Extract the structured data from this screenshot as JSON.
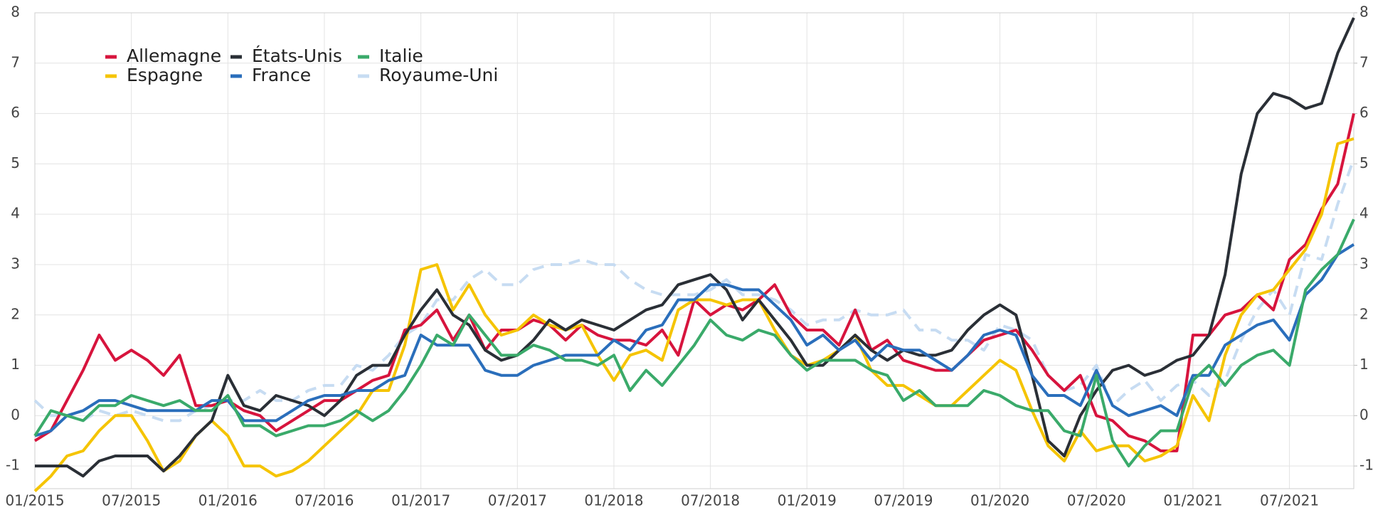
{
  "chart_data": {
    "type": "line",
    "categories": [
      "01/2015",
      null,
      null,
      null,
      null,
      null,
      "07/2015",
      null,
      null,
      null,
      null,
      null,
      "01/2016",
      null,
      null,
      null,
      null,
      null,
      "07/2016",
      null,
      null,
      null,
      null,
      null,
      "01/2017",
      null,
      null,
      null,
      null,
      null,
      "07/2017",
      null,
      null,
      null,
      null,
      null,
      "01/2018",
      null,
      null,
      null,
      null,
      null,
      "07/2018",
      null,
      null,
      null,
      null,
      null,
      "01/2019",
      null,
      null,
      null,
      null,
      null,
      "07/2019",
      null,
      null,
      null,
      null,
      null,
      "01/2020",
      null,
      null,
      null,
      null,
      null,
      "07/2020",
      null,
      null,
      null,
      null,
      null,
      "01/2021",
      null,
      null,
      null,
      null,
      null,
      "07/2021",
      null,
      null,
      null,
      null
    ],
    "series": [
      {
        "name": "Allemagne",
        "color": "#d7143d",
        "values": [
          -0.5,
          -0.3,
          0.3,
          0.9,
          1.6,
          1.1,
          1.3,
          1.1,
          0.8,
          1.2,
          0.2,
          0.2,
          0.3,
          0.1,
          0.0,
          -0.3,
          -0.1,
          0.1,
          0.3,
          0.3,
          0.5,
          0.7,
          0.8,
          1.7,
          1.8,
          2.1,
          1.5,
          2.0,
          1.3,
          1.7,
          1.7,
          1.9,
          1.8,
          1.5,
          1.8,
          1.6,
          1.5,
          1.5,
          1.4,
          1.7,
          1.2,
          2.3,
          2.0,
          2.2,
          2.1,
          2.3,
          2.6,
          2.0,
          1.7,
          1.7,
          1.4,
          2.1,
          1.3,
          1.5,
          1.1,
          1.0,
          0.9,
          0.9,
          1.2,
          1.5,
          1.6,
          1.7,
          1.3,
          0.8,
          0.5,
          0.8,
          0.0,
          -0.1,
          -0.4,
          -0.5,
          -0.7,
          -0.7,
          1.6,
          1.6,
          2.0,
          2.1,
          2.4,
          2.1,
          3.1,
          3.4,
          4.1,
          4.6,
          6.0
        ]
      },
      {
        "name": "Espagne",
        "color": "#f5c400",
        "values": [
          -1.5,
          -1.2,
          -0.8,
          -0.7,
          -0.3,
          -0.0,
          -0.0,
          -0.5,
          -1.1,
          -0.9,
          -0.4,
          -0.1,
          -0.4,
          -1.0,
          -1.0,
          -1.2,
          -1.1,
          -0.9,
          -0.6,
          -0.3,
          0.0,
          0.5,
          0.5,
          1.4,
          2.9,
          3.0,
          2.1,
          2.6,
          2.0,
          1.6,
          1.7,
          2.0,
          1.8,
          1.7,
          1.8,
          1.2,
          0.7,
          1.2,
          1.3,
          1.1,
          2.1,
          2.3,
          2.3,
          2.2,
          2.3,
          2.3,
          1.7,
          1.2,
          1.0,
          1.1,
          1.3,
          1.6,
          0.9,
          0.6,
          0.6,
          0.4,
          0.2,
          0.2,
          0.5,
          0.8,
          1.1,
          0.9,
          0.1,
          -0.6,
          -0.9,
          -0.3,
          -0.7,
          -0.6,
          -0.6,
          -0.9,
          -0.8,
          -0.6,
          0.4,
          -0.1,
          1.2,
          2.0,
          2.4,
          2.5,
          2.9,
          3.3,
          4.0,
          5.4,
          5.5
        ]
      },
      {
        "name": "États-Unis",
        "color": "#2a2f36",
        "values": [
          -1.0,
          -1.0,
          -1.0,
          -1.2,
          -0.9,
          -0.8,
          -0.8,
          -0.8,
          -1.1,
          -0.8,
          -0.4,
          -0.1,
          0.8,
          0.2,
          0.1,
          0.4,
          0.3,
          0.2,
          0.0,
          0.3,
          0.8,
          1.0,
          1.0,
          1.6,
          2.1,
          2.5,
          2.0,
          1.8,
          1.3,
          1.1,
          1.2,
          1.5,
          1.9,
          1.7,
          1.9,
          1.8,
          1.7,
          1.9,
          2.1,
          2.2,
          2.6,
          2.7,
          2.8,
          2.5,
          1.9,
          2.3,
          1.9,
          1.5,
          1.0,
          1.0,
          1.3,
          1.6,
          1.3,
          1.1,
          1.3,
          1.2,
          1.2,
          1.3,
          1.7,
          2.0,
          2.2,
          2.0,
          0.8,
          -0.5,
          -0.8,
          0.0,
          0.5,
          0.9,
          1.0,
          0.8,
          0.9,
          1.1,
          1.2,
          1.6,
          2.8,
          4.8,
          6.0,
          6.4,
          6.3,
          6.1,
          6.2,
          7.2,
          7.9
        ]
      },
      {
        "name": "France",
        "color": "#2a6ebb",
        "values": [
          -0.4,
          -0.3,
          0.0,
          0.1,
          0.3,
          0.3,
          0.2,
          0.1,
          0.1,
          0.1,
          0.1,
          0.3,
          0.3,
          -0.1,
          -0.1,
          -0.1,
          0.1,
          0.3,
          0.4,
          0.4,
          0.5,
          0.5,
          0.7,
          0.8,
          1.6,
          1.4,
          1.4,
          1.4,
          0.9,
          0.8,
          0.8,
          1.0,
          1.1,
          1.2,
          1.2,
          1.2,
          1.5,
          1.3,
          1.7,
          1.8,
          2.3,
          2.3,
          2.6,
          2.6,
          2.5,
          2.5,
          2.2,
          1.9,
          1.4,
          1.6,
          1.3,
          1.5,
          1.1,
          1.4,
          1.3,
          1.3,
          1.1,
          0.9,
          1.2,
          1.6,
          1.7,
          1.6,
          0.8,
          0.4,
          0.4,
          0.2,
          0.9,
          0.2,
          0.0,
          0.1,
          0.2,
          0.0,
          0.8,
          0.8,
          1.4,
          1.6,
          1.8,
          1.9,
          1.5,
          2.4,
          2.7,
          3.2,
          3.4
        ]
      },
      {
        "name": "Italie",
        "color": "#3aaa6a",
        "values": [
          -0.4,
          0.1,
          0.0,
          -0.1,
          0.2,
          0.2,
          0.4,
          0.3,
          0.2,
          0.3,
          0.1,
          0.1,
          0.4,
          -0.2,
          -0.2,
          -0.4,
          -0.3,
          -0.2,
          -0.2,
          -0.1,
          0.1,
          -0.1,
          0.1,
          0.5,
          1.0,
          1.6,
          1.4,
          2.0,
          1.6,
          1.2,
          1.2,
          1.4,
          1.3,
          1.1,
          1.1,
          1.0,
          1.2,
          0.5,
          0.9,
          0.6,
          1.0,
          1.4,
          1.9,
          1.6,
          1.5,
          1.7,
          1.6,
          1.2,
          0.9,
          1.1,
          1.1,
          1.1,
          0.9,
          0.8,
          0.3,
          0.5,
          0.2,
          0.2,
          0.2,
          0.5,
          0.4,
          0.2,
          0.1,
          0.1,
          -0.3,
          -0.4,
          0.8,
          -0.5,
          -1.0,
          -0.6,
          -0.3,
          -0.3,
          0.7,
          1.0,
          0.6,
          1.0,
          1.2,
          1.3,
          1.0,
          2.5,
          2.9,
          3.2,
          3.9
        ]
      },
      {
        "name": "Royaume-Uni",
        "color": "#c7dcf2",
        "dashed": true,
        "values": [
          0.3,
          0.0,
          0.0,
          -0.1,
          0.1,
          0.0,
          0.1,
          0.0,
          -0.1,
          -0.1,
          0.1,
          0.2,
          0.3,
          0.3,
          0.5,
          0.3,
          0.3,
          0.5,
          0.6,
          0.6,
          1.0,
          0.9,
          1.2,
          1.6,
          1.8,
          2.3,
          2.3,
          2.7,
          2.9,
          2.6,
          2.6,
          2.9,
          3.0,
          3.0,
          3.1,
          3.0,
          3.0,
          2.7,
          2.5,
          2.4,
          2.4,
          2.4,
          2.5,
          2.7,
          2.4,
          2.4,
          2.3,
          2.1,
          1.8,
          1.9,
          1.9,
          2.1,
          2.0,
          2.0,
          2.1,
          1.7,
          1.7,
          1.5,
          1.5,
          1.3,
          1.8,
          1.7,
          1.5,
          0.8,
          0.5,
          0.6,
          1.0,
          0.2,
          0.5,
          0.7,
          0.3,
          0.6,
          0.7,
          0.4,
          0.7,
          1.5,
          2.1,
          2.5,
          2.0,
          3.2,
          3.1,
          4.2,
          5.1
        ]
      }
    ],
    "ylim": [
      -1.45,
      8
    ],
    "yticks": [
      -1,
      0,
      1,
      2,
      3,
      4,
      5,
      6,
      7,
      8
    ],
    "y2lim": [
      -1.45,
      8
    ],
    "y2ticks": [
      -1,
      0,
      1,
      2,
      3,
      4,
      5,
      6,
      7,
      8
    ],
    "grid": true,
    "legend": "upper left"
  }
}
